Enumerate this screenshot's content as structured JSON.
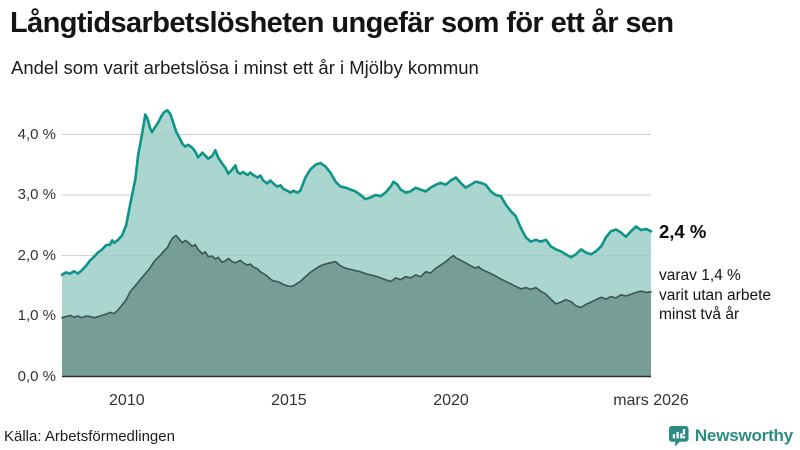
{
  "header": {
    "title": "Långtidsarbetslösheten ungefär som för ett år sen",
    "subtitle": "Andel som varit arbetslösa i minst ett år i Mjölby kommun"
  },
  "annotations": {
    "latest_value": "2,4 %",
    "secondary_line1": "varav 1,4 %",
    "secondary_line2": "varit utan arbete",
    "secondary_line3": "minst två år"
  },
  "footer": {
    "source": "Källa: Arbetsförmedlingen",
    "brand": "Newsworthy"
  },
  "colors": {
    "series1_stroke": "#0e9488",
    "series1_fill": "rgba(149,204,195,0.8)",
    "series2_stroke": "#3a5650",
    "series2_fill": "rgba(47,79,72,0.42)",
    "gridline": "#cfcfcf",
    "axis_line": "#2e2e2e",
    "text": "#333333",
    "brand_teal": "#2b8c86"
  },
  "chart_data": {
    "type": "area",
    "title": "Långtidsarbetslösheten ungefär som för ett år sen",
    "subtitle": "Andel som varit arbetslösa i minst ett år i Mjölby kommun",
    "xlabel": "",
    "ylabel": "",
    "unit": "%",
    "grid": true,
    "legend_position": "none",
    "x_domain": [
      2008.0,
      2026.17
    ],
    "ylim": [
      0,
      4.5
    ],
    "y_ticks": [
      {
        "v": 0,
        "label": "0,0 %"
      },
      {
        "v": 1,
        "label": "1,0 %"
      },
      {
        "v": 2,
        "label": "2,0 %"
      },
      {
        "v": 3,
        "label": "3,0 %"
      },
      {
        "v": 4,
        "label": "4,0 %"
      }
    ],
    "x_ticks": [
      {
        "t": 2010,
        "label": "2010"
      },
      {
        "t": 2015,
        "label": "2015"
      },
      {
        "t": 2020,
        "label": "2020"
      },
      {
        "t": 2026.17,
        "label": "mars 2026"
      }
    ],
    "series": [
      {
        "name": "Andel arbetslösa minst ett år",
        "latest_label": "2,4 %",
        "stroke": "#0e9488",
        "stroke_width": 2.6,
        "fill": "rgba(149,204,195,0.8)",
        "points": [
          [
            2008.0,
            1.68
          ],
          [
            2008.12,
            1.72
          ],
          [
            2008.25,
            1.7
          ],
          [
            2008.37,
            1.74
          ],
          [
            2008.49,
            1.7
          ],
          [
            2008.62,
            1.76
          ],
          [
            2008.74,
            1.83
          ],
          [
            2008.87,
            1.92
          ],
          [
            2008.99,
            1.98
          ],
          [
            2009.11,
            2.05
          ],
          [
            2009.24,
            2.1
          ],
          [
            2009.36,
            2.17
          ],
          [
            2009.48,
            2.18
          ],
          [
            2009.55,
            2.25
          ],
          [
            2009.61,
            2.21
          ],
          [
            2009.73,
            2.26
          ],
          [
            2009.85,
            2.33
          ],
          [
            2009.98,
            2.5
          ],
          [
            2010.1,
            2.84
          ],
          [
            2010.26,
            3.26
          ],
          [
            2010.35,
            3.67
          ],
          [
            2010.41,
            3.83
          ],
          [
            2010.5,
            4.1
          ],
          [
            2010.57,
            4.33
          ],
          [
            2010.63,
            4.27
          ],
          [
            2010.72,
            4.1
          ],
          [
            2010.78,
            4.04
          ],
          [
            2010.87,
            4.12
          ],
          [
            2010.97,
            4.2
          ],
          [
            2011.06,
            4.3
          ],
          [
            2011.15,
            4.37
          ],
          [
            2011.25,
            4.4
          ],
          [
            2011.34,
            4.34
          ],
          [
            2011.43,
            4.2
          ],
          [
            2011.52,
            4.05
          ],
          [
            2011.62,
            3.95
          ],
          [
            2011.71,
            3.85
          ],
          [
            2011.8,
            3.8
          ],
          [
            2011.89,
            3.83
          ],
          [
            2012.02,
            3.78
          ],
          [
            2012.11,
            3.72
          ],
          [
            2012.2,
            3.62
          ],
          [
            2012.33,
            3.7
          ],
          [
            2012.42,
            3.65
          ],
          [
            2012.51,
            3.6
          ],
          [
            2012.64,
            3.65
          ],
          [
            2012.73,
            3.74
          ],
          [
            2012.82,
            3.62
          ],
          [
            2012.94,
            3.52
          ],
          [
            2013.04,
            3.45
          ],
          [
            2013.13,
            3.35
          ],
          [
            2013.25,
            3.42
          ],
          [
            2013.35,
            3.49
          ],
          [
            2013.41,
            3.38
          ],
          [
            2013.5,
            3.35
          ],
          [
            2013.59,
            3.38
          ],
          [
            2013.72,
            3.33
          ],
          [
            2013.81,
            3.37
          ],
          [
            2013.9,
            3.33
          ],
          [
            2014.03,
            3.29
          ],
          [
            2014.12,
            3.32
          ],
          [
            2014.21,
            3.24
          ],
          [
            2014.33,
            3.19
          ],
          [
            2014.43,
            3.24
          ],
          [
            2014.52,
            3.19
          ],
          [
            2014.64,
            3.14
          ],
          [
            2014.74,
            3.16
          ],
          [
            2014.83,
            3.1
          ],
          [
            2014.95,
            3.07
          ],
          [
            2015.05,
            3.04
          ],
          [
            2015.14,
            3.07
          ],
          [
            2015.26,
            3.04
          ],
          [
            2015.35,
            3.07
          ],
          [
            2015.51,
            3.29
          ],
          [
            2015.66,
            3.42
          ],
          [
            2015.82,
            3.5
          ],
          [
            2015.97,
            3.53
          ],
          [
            2016.13,
            3.47
          ],
          [
            2016.28,
            3.37
          ],
          [
            2016.44,
            3.22
          ],
          [
            2016.59,
            3.14
          ],
          [
            2016.75,
            3.12
          ],
          [
            2016.9,
            3.09
          ],
          [
            2017.05,
            3.06
          ],
          [
            2017.21,
            3.0
          ],
          [
            2017.36,
            2.93
          ],
          [
            2017.52,
            2.96
          ],
          [
            2017.67,
            3.0
          ],
          [
            2017.83,
            2.98
          ],
          [
            2017.98,
            3.04
          ],
          [
            2018.14,
            3.14
          ],
          [
            2018.23,
            3.22
          ],
          [
            2018.35,
            3.17
          ],
          [
            2018.45,
            3.09
          ],
          [
            2018.6,
            3.04
          ],
          [
            2018.75,
            3.06
          ],
          [
            2018.91,
            3.12
          ],
          [
            2019.06,
            3.09
          ],
          [
            2019.22,
            3.06
          ],
          [
            2019.37,
            3.12
          ],
          [
            2019.53,
            3.17
          ],
          [
            2019.68,
            3.2
          ],
          [
            2019.84,
            3.17
          ],
          [
            2019.99,
            3.24
          ],
          [
            2020.15,
            3.29
          ],
          [
            2020.3,
            3.2
          ],
          [
            2020.45,
            3.12
          ],
          [
            2020.61,
            3.17
          ],
          [
            2020.76,
            3.22
          ],
          [
            2020.92,
            3.2
          ],
          [
            2021.07,
            3.17
          ],
          [
            2021.23,
            3.06
          ],
          [
            2021.38,
            3.0
          ],
          [
            2021.54,
            2.98
          ],
          [
            2021.69,
            2.84
          ],
          [
            2021.85,
            2.73
          ],
          [
            2022.0,
            2.65
          ],
          [
            2022.15,
            2.46
          ],
          [
            2022.31,
            2.3
          ],
          [
            2022.46,
            2.23
          ],
          [
            2022.62,
            2.26
          ],
          [
            2022.77,
            2.23
          ],
          [
            2022.93,
            2.26
          ],
          [
            2023.08,
            2.15
          ],
          [
            2023.24,
            2.1
          ],
          [
            2023.39,
            2.07
          ],
          [
            2023.54,
            2.02
          ],
          [
            2023.7,
            1.97
          ],
          [
            2023.85,
            2.02
          ],
          [
            2024.01,
            2.1
          ],
          [
            2024.16,
            2.05
          ],
          [
            2024.32,
            2.02
          ],
          [
            2024.47,
            2.07
          ],
          [
            2024.63,
            2.15
          ],
          [
            2024.78,
            2.3
          ],
          [
            2024.93,
            2.4
          ],
          [
            2025.09,
            2.43
          ],
          [
            2025.24,
            2.38
          ],
          [
            2025.4,
            2.31
          ],
          [
            2025.55,
            2.4
          ],
          [
            2025.71,
            2.48
          ],
          [
            2025.86,
            2.42
          ],
          [
            2026.02,
            2.44
          ],
          [
            2026.17,
            2.4
          ]
        ]
      },
      {
        "name": "varav utan arbete minst två år",
        "latest_label": "1,4 %",
        "stroke": "#3a5650",
        "stroke_width": 1.6,
        "fill": "rgba(47,79,72,0.42)",
        "points": [
          [
            2008.0,
            0.97
          ],
          [
            2008.12,
            0.99
          ],
          [
            2008.25,
            1.01
          ],
          [
            2008.37,
            0.98
          ],
          [
            2008.49,
            1.0
          ],
          [
            2008.62,
            0.97
          ],
          [
            2008.74,
            1.0
          ],
          [
            2008.87,
            0.99
          ],
          [
            2008.99,
            0.97
          ],
          [
            2009.11,
            0.99
          ],
          [
            2009.24,
            1.01
          ],
          [
            2009.36,
            1.03
          ],
          [
            2009.48,
            1.06
          ],
          [
            2009.61,
            1.04
          ],
          [
            2009.73,
            1.1
          ],
          [
            2009.85,
            1.18
          ],
          [
            2009.98,
            1.27
          ],
          [
            2010.1,
            1.4
          ],
          [
            2010.26,
            1.5
          ],
          [
            2010.41,
            1.6
          ],
          [
            2010.57,
            1.7
          ],
          [
            2010.72,
            1.8
          ],
          [
            2010.87,
            1.92
          ],
          [
            2010.97,
            1.97
          ],
          [
            2011.06,
            2.02
          ],
          [
            2011.15,
            2.08
          ],
          [
            2011.25,
            2.13
          ],
          [
            2011.34,
            2.23
          ],
          [
            2011.43,
            2.3
          ],
          [
            2011.52,
            2.33
          ],
          [
            2011.62,
            2.27
          ],
          [
            2011.71,
            2.21
          ],
          [
            2011.8,
            2.25
          ],
          [
            2011.89,
            2.22
          ],
          [
            2012.02,
            2.15
          ],
          [
            2012.11,
            2.18
          ],
          [
            2012.2,
            2.1
          ],
          [
            2012.33,
            2.03
          ],
          [
            2012.42,
            2.06
          ],
          [
            2012.51,
            1.98
          ],
          [
            2012.64,
            1.99
          ],
          [
            2012.73,
            1.94
          ],
          [
            2012.82,
            1.97
          ],
          [
            2012.94,
            1.89
          ],
          [
            2013.04,
            1.91
          ],
          [
            2013.13,
            1.95
          ],
          [
            2013.25,
            1.9
          ],
          [
            2013.35,
            1.88
          ],
          [
            2013.5,
            1.92
          ],
          [
            2013.59,
            1.88
          ],
          [
            2013.72,
            1.84
          ],
          [
            2013.81,
            1.86
          ],
          [
            2013.9,
            1.81
          ],
          [
            2014.03,
            1.78
          ],
          [
            2014.12,
            1.73
          ],
          [
            2014.21,
            1.7
          ],
          [
            2014.33,
            1.66
          ],
          [
            2014.43,
            1.61
          ],
          [
            2014.52,
            1.58
          ],
          [
            2014.64,
            1.57
          ],
          [
            2014.74,
            1.55
          ],
          [
            2014.83,
            1.52
          ],
          [
            2014.95,
            1.5
          ],
          [
            2015.05,
            1.49
          ],
          [
            2015.14,
            1.5
          ],
          [
            2015.26,
            1.54
          ],
          [
            2015.35,
            1.57
          ],
          [
            2015.51,
            1.65
          ],
          [
            2015.66,
            1.72
          ],
          [
            2015.82,
            1.78
          ],
          [
            2015.97,
            1.83
          ],
          [
            2016.13,
            1.86
          ],
          [
            2016.28,
            1.88
          ],
          [
            2016.44,
            1.9
          ],
          [
            2016.59,
            1.83
          ],
          [
            2016.75,
            1.79
          ],
          [
            2016.9,
            1.77
          ],
          [
            2017.05,
            1.75
          ],
          [
            2017.21,
            1.73
          ],
          [
            2017.36,
            1.7
          ],
          [
            2017.52,
            1.68
          ],
          [
            2017.67,
            1.66
          ],
          [
            2017.83,
            1.63
          ],
          [
            2017.98,
            1.6
          ],
          [
            2018.14,
            1.57
          ],
          [
            2018.3,
            1.63
          ],
          [
            2018.45,
            1.6
          ],
          [
            2018.6,
            1.65
          ],
          [
            2018.75,
            1.63
          ],
          [
            2018.91,
            1.68
          ],
          [
            2019.06,
            1.65
          ],
          [
            2019.22,
            1.73
          ],
          [
            2019.37,
            1.71
          ],
          [
            2019.53,
            1.79
          ],
          [
            2019.68,
            1.84
          ],
          [
            2019.84,
            1.9
          ],
          [
            2019.99,
            1.97
          ],
          [
            2020.08,
            2.0
          ],
          [
            2020.15,
            1.96
          ],
          [
            2020.3,
            1.92
          ],
          [
            2020.45,
            1.88
          ],
          [
            2020.61,
            1.83
          ],
          [
            2020.76,
            1.79
          ],
          [
            2020.85,
            1.82
          ],
          [
            2020.92,
            1.78
          ],
          [
            2021.07,
            1.74
          ],
          [
            2021.23,
            1.7
          ],
          [
            2021.38,
            1.66
          ],
          [
            2021.54,
            1.61
          ],
          [
            2021.69,
            1.57
          ],
          [
            2021.85,
            1.53
          ],
          [
            2022.0,
            1.49
          ],
          [
            2022.15,
            1.45
          ],
          [
            2022.31,
            1.47
          ],
          [
            2022.46,
            1.44
          ],
          [
            2022.62,
            1.47
          ],
          [
            2022.77,
            1.41
          ],
          [
            2022.93,
            1.36
          ],
          [
            2023.08,
            1.28
          ],
          [
            2023.24,
            1.2
          ],
          [
            2023.39,
            1.23
          ],
          [
            2023.54,
            1.27
          ],
          [
            2023.7,
            1.24
          ],
          [
            2023.85,
            1.17
          ],
          [
            2024.01,
            1.14
          ],
          [
            2024.16,
            1.19
          ],
          [
            2024.32,
            1.23
          ],
          [
            2024.47,
            1.27
          ],
          [
            2024.63,
            1.31
          ],
          [
            2024.78,
            1.28
          ],
          [
            2024.93,
            1.32
          ],
          [
            2025.09,
            1.3
          ],
          [
            2025.24,
            1.35
          ],
          [
            2025.4,
            1.33
          ],
          [
            2025.55,
            1.36
          ],
          [
            2025.71,
            1.39
          ],
          [
            2025.86,
            1.41
          ],
          [
            2026.02,
            1.39
          ],
          [
            2026.17,
            1.4
          ]
        ]
      }
    ]
  }
}
